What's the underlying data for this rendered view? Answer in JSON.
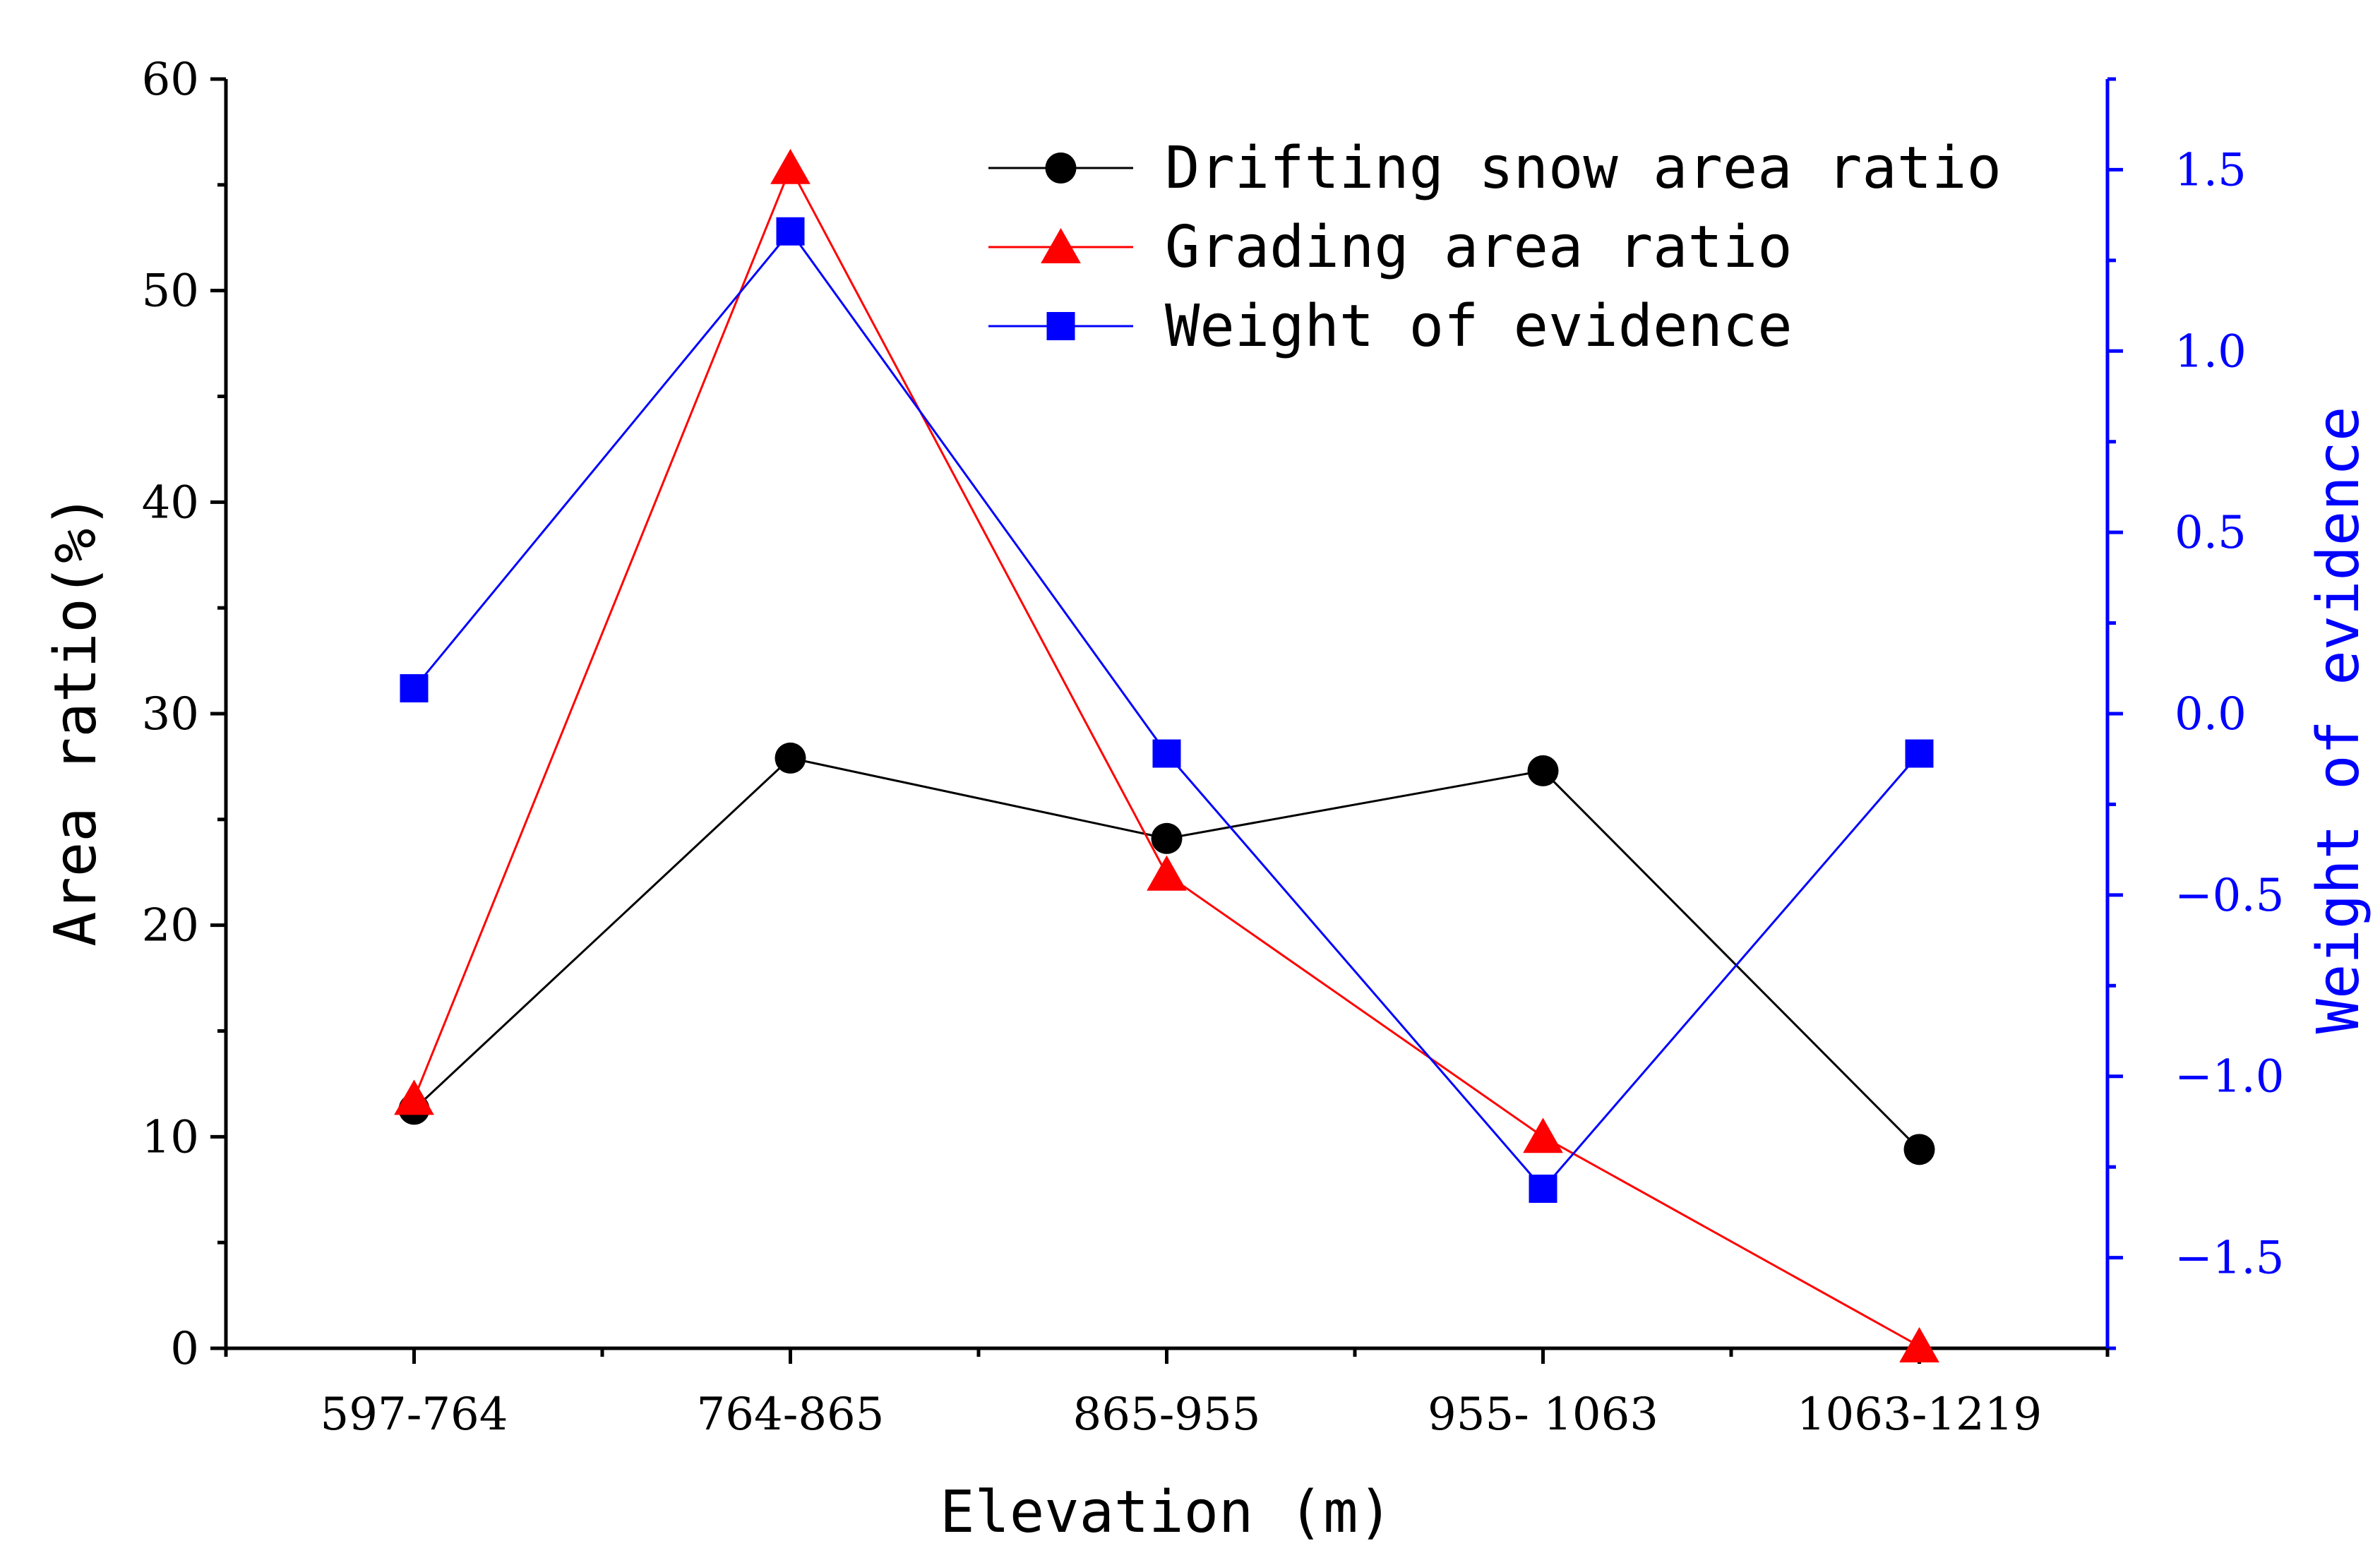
{
  "chart_data": {
    "type": "line",
    "categories": [
      "597-764",
      "764-865",
      "865-955",
      "955- 1063",
      "1063-1219"
    ],
    "xlabel": "Elevation (m)",
    "ylabel": "Area ratio(%)",
    "y2label": "Weight of evidence",
    "ylim": [
      0,
      60
    ],
    "y2lim": [
      -1.75,
      1.75
    ],
    "yticks": [
      "0",
      "10",
      "20",
      "30",
      "40",
      "50",
      "60"
    ],
    "y2ticks": [
      "−1.5",
      "−1.0",
      "−0.5",
      "0.0",
      "0.5",
      "1.0",
      "1.5"
    ],
    "y2tick_values": [
      -1.5,
      -1.0,
      -0.5,
      0.0,
      0.5,
      1.0,
      1.5
    ],
    "grid": false,
    "legend_position": "top-right",
    "series": [
      {
        "name": "Drifting snow  area ratio",
        "axis": "left",
        "marker": "circle",
        "color": "#000000",
        "values": [
          11.3,
          27.9,
          24.1,
          27.3,
          9.4
        ]
      },
      {
        "name": "Grading area ratio",
        "axis": "left",
        "marker": "triangle",
        "color": "#ff0000",
        "values": [
          11.8,
          55.8,
          22.4,
          10.0,
          0.1
        ]
      },
      {
        "name": "Weight of evidence",
        "axis": "right",
        "marker": "square",
        "color": "#0000ff",
        "values": [
          0.07,
          1.33,
          -0.11,
          -1.31,
          -0.11
        ]
      }
    ]
  }
}
